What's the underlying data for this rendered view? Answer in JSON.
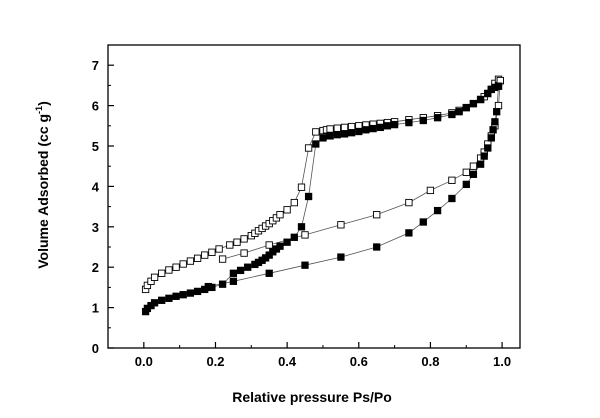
{
  "chart_data": {
    "type": "scatter",
    "xlabel": "Relative pressure Ps/Po",
    "ylabel_main": "Volume Adsorbed (cc g",
    "ylabel_sup": "-1",
    "ylabel_end": ")",
    "xlim": [
      -0.1,
      1.05
    ],
    "ylim": [
      0,
      7.5
    ],
    "x_ticks": [
      "0.0",
      "0.2",
      "0.4",
      "0.6",
      "0.8",
      "1.0"
    ],
    "y_ticks": [
      "0",
      "1",
      "2",
      "3",
      "4",
      "5",
      "6",
      "7"
    ],
    "grid": false,
    "legend": "none",
    "series": [
      {
        "marker": "square-open",
        "color": "#000000",
        "x": [
          0.005,
          0.01,
          0.02,
          0.03,
          0.05,
          0.07,
          0.09,
          0.11,
          0.13,
          0.15,
          0.17,
          0.19,
          0.21,
          0.24,
          0.26,
          0.28,
          0.3,
          0.31,
          0.32,
          0.33,
          0.34,
          0.35,
          0.36,
          0.37,
          0.38,
          0.4,
          0.42,
          0.44,
          0.46,
          0.48,
          0.5,
          0.51,
          0.52,
          0.54,
          0.56,
          0.58,
          0.6,
          0.62,
          0.64,
          0.66,
          0.68,
          0.7,
          0.74,
          0.78,
          0.82,
          0.86,
          0.88,
          0.9,
          0.92,
          0.94,
          0.95,
          0.96,
          0.97,
          0.98,
          0.99,
          0.995
        ],
        "y": [
          1.45,
          1.55,
          1.65,
          1.75,
          1.85,
          1.93,
          2.0,
          2.08,
          2.15,
          2.22,
          2.3,
          2.37,
          2.45,
          2.55,
          2.62,
          2.7,
          2.78,
          2.84,
          2.9,
          2.96,
          3.02,
          3.08,
          3.15,
          3.22,
          3.3,
          3.42,
          3.6,
          3.98,
          4.95,
          5.35,
          5.38,
          5.4,
          5.42,
          5.44,
          5.46,
          5.48,
          5.5,
          5.52,
          5.54,
          5.56,
          5.58,
          5.6,
          5.65,
          5.7,
          5.75,
          5.82,
          5.88,
          5.95,
          6.05,
          6.15,
          6.22,
          6.3,
          6.4,
          6.55,
          6.65,
          6.62
        ]
      },
      {
        "marker": "square-open",
        "color": "#000000",
        "x": [
          0.995,
          0.99,
          0.98,
          0.97,
          0.96,
          0.95,
          0.94,
          0.92,
          0.9,
          0.86,
          0.8,
          0.74,
          0.65,
          0.55,
          0.45,
          0.35,
          0.28,
          0.22
        ],
        "y": [
          6.62,
          6.0,
          5.5,
          5.25,
          5.05,
          4.85,
          4.7,
          4.5,
          4.35,
          4.15,
          3.9,
          3.6,
          3.3,
          3.05,
          2.8,
          2.55,
          2.35,
          2.2
        ]
      },
      {
        "marker": "square-filled",
        "color": "#000000",
        "x": [
          0.005,
          0.01,
          0.02,
          0.03,
          0.05,
          0.07,
          0.09,
          0.11,
          0.13,
          0.15,
          0.17,
          0.19,
          0.22,
          0.25,
          0.27,
          0.29,
          0.31,
          0.32,
          0.33,
          0.34,
          0.35,
          0.36,
          0.37,
          0.38,
          0.4,
          0.42,
          0.44,
          0.46,
          0.48,
          0.5,
          0.52,
          0.54,
          0.56,
          0.58,
          0.6,
          0.62,
          0.64,
          0.66,
          0.68,
          0.7,
          0.74,
          0.78,
          0.82,
          0.86,
          0.88,
          0.9,
          0.92,
          0.94,
          0.96,
          0.97,
          0.98,
          0.99
        ],
        "y": [
          0.9,
          0.98,
          1.05,
          1.12,
          1.18,
          1.23,
          1.28,
          1.32,
          1.36,
          1.4,
          1.45,
          1.5,
          1.58,
          1.85,
          1.92,
          2.0,
          2.07,
          2.12,
          2.17,
          2.23,
          2.3,
          2.38,
          2.45,
          2.52,
          2.62,
          2.74,
          3.0,
          3.75,
          5.05,
          5.2,
          5.25,
          5.28,
          5.3,
          5.33,
          5.36,
          5.4,
          5.43,
          5.46,
          5.5,
          5.53,
          5.58,
          5.63,
          5.7,
          5.78,
          5.85,
          5.95,
          6.05,
          6.15,
          6.3,
          6.4,
          6.45,
          6.48
        ]
      },
      {
        "marker": "square-filled",
        "color": "#000000",
        "x": [
          0.99,
          0.985,
          0.98,
          0.975,
          0.97,
          0.96,
          0.95,
          0.94,
          0.92,
          0.9,
          0.86,
          0.82,
          0.78,
          0.74,
          0.65,
          0.55,
          0.45,
          0.35,
          0.25,
          0.18
        ],
        "y": [
          6.48,
          5.85,
          5.6,
          5.4,
          5.2,
          4.95,
          4.75,
          4.55,
          4.3,
          4.05,
          3.7,
          3.4,
          3.12,
          2.85,
          2.5,
          2.25,
          2.05,
          1.85,
          1.65,
          1.52
        ]
      }
    ]
  }
}
